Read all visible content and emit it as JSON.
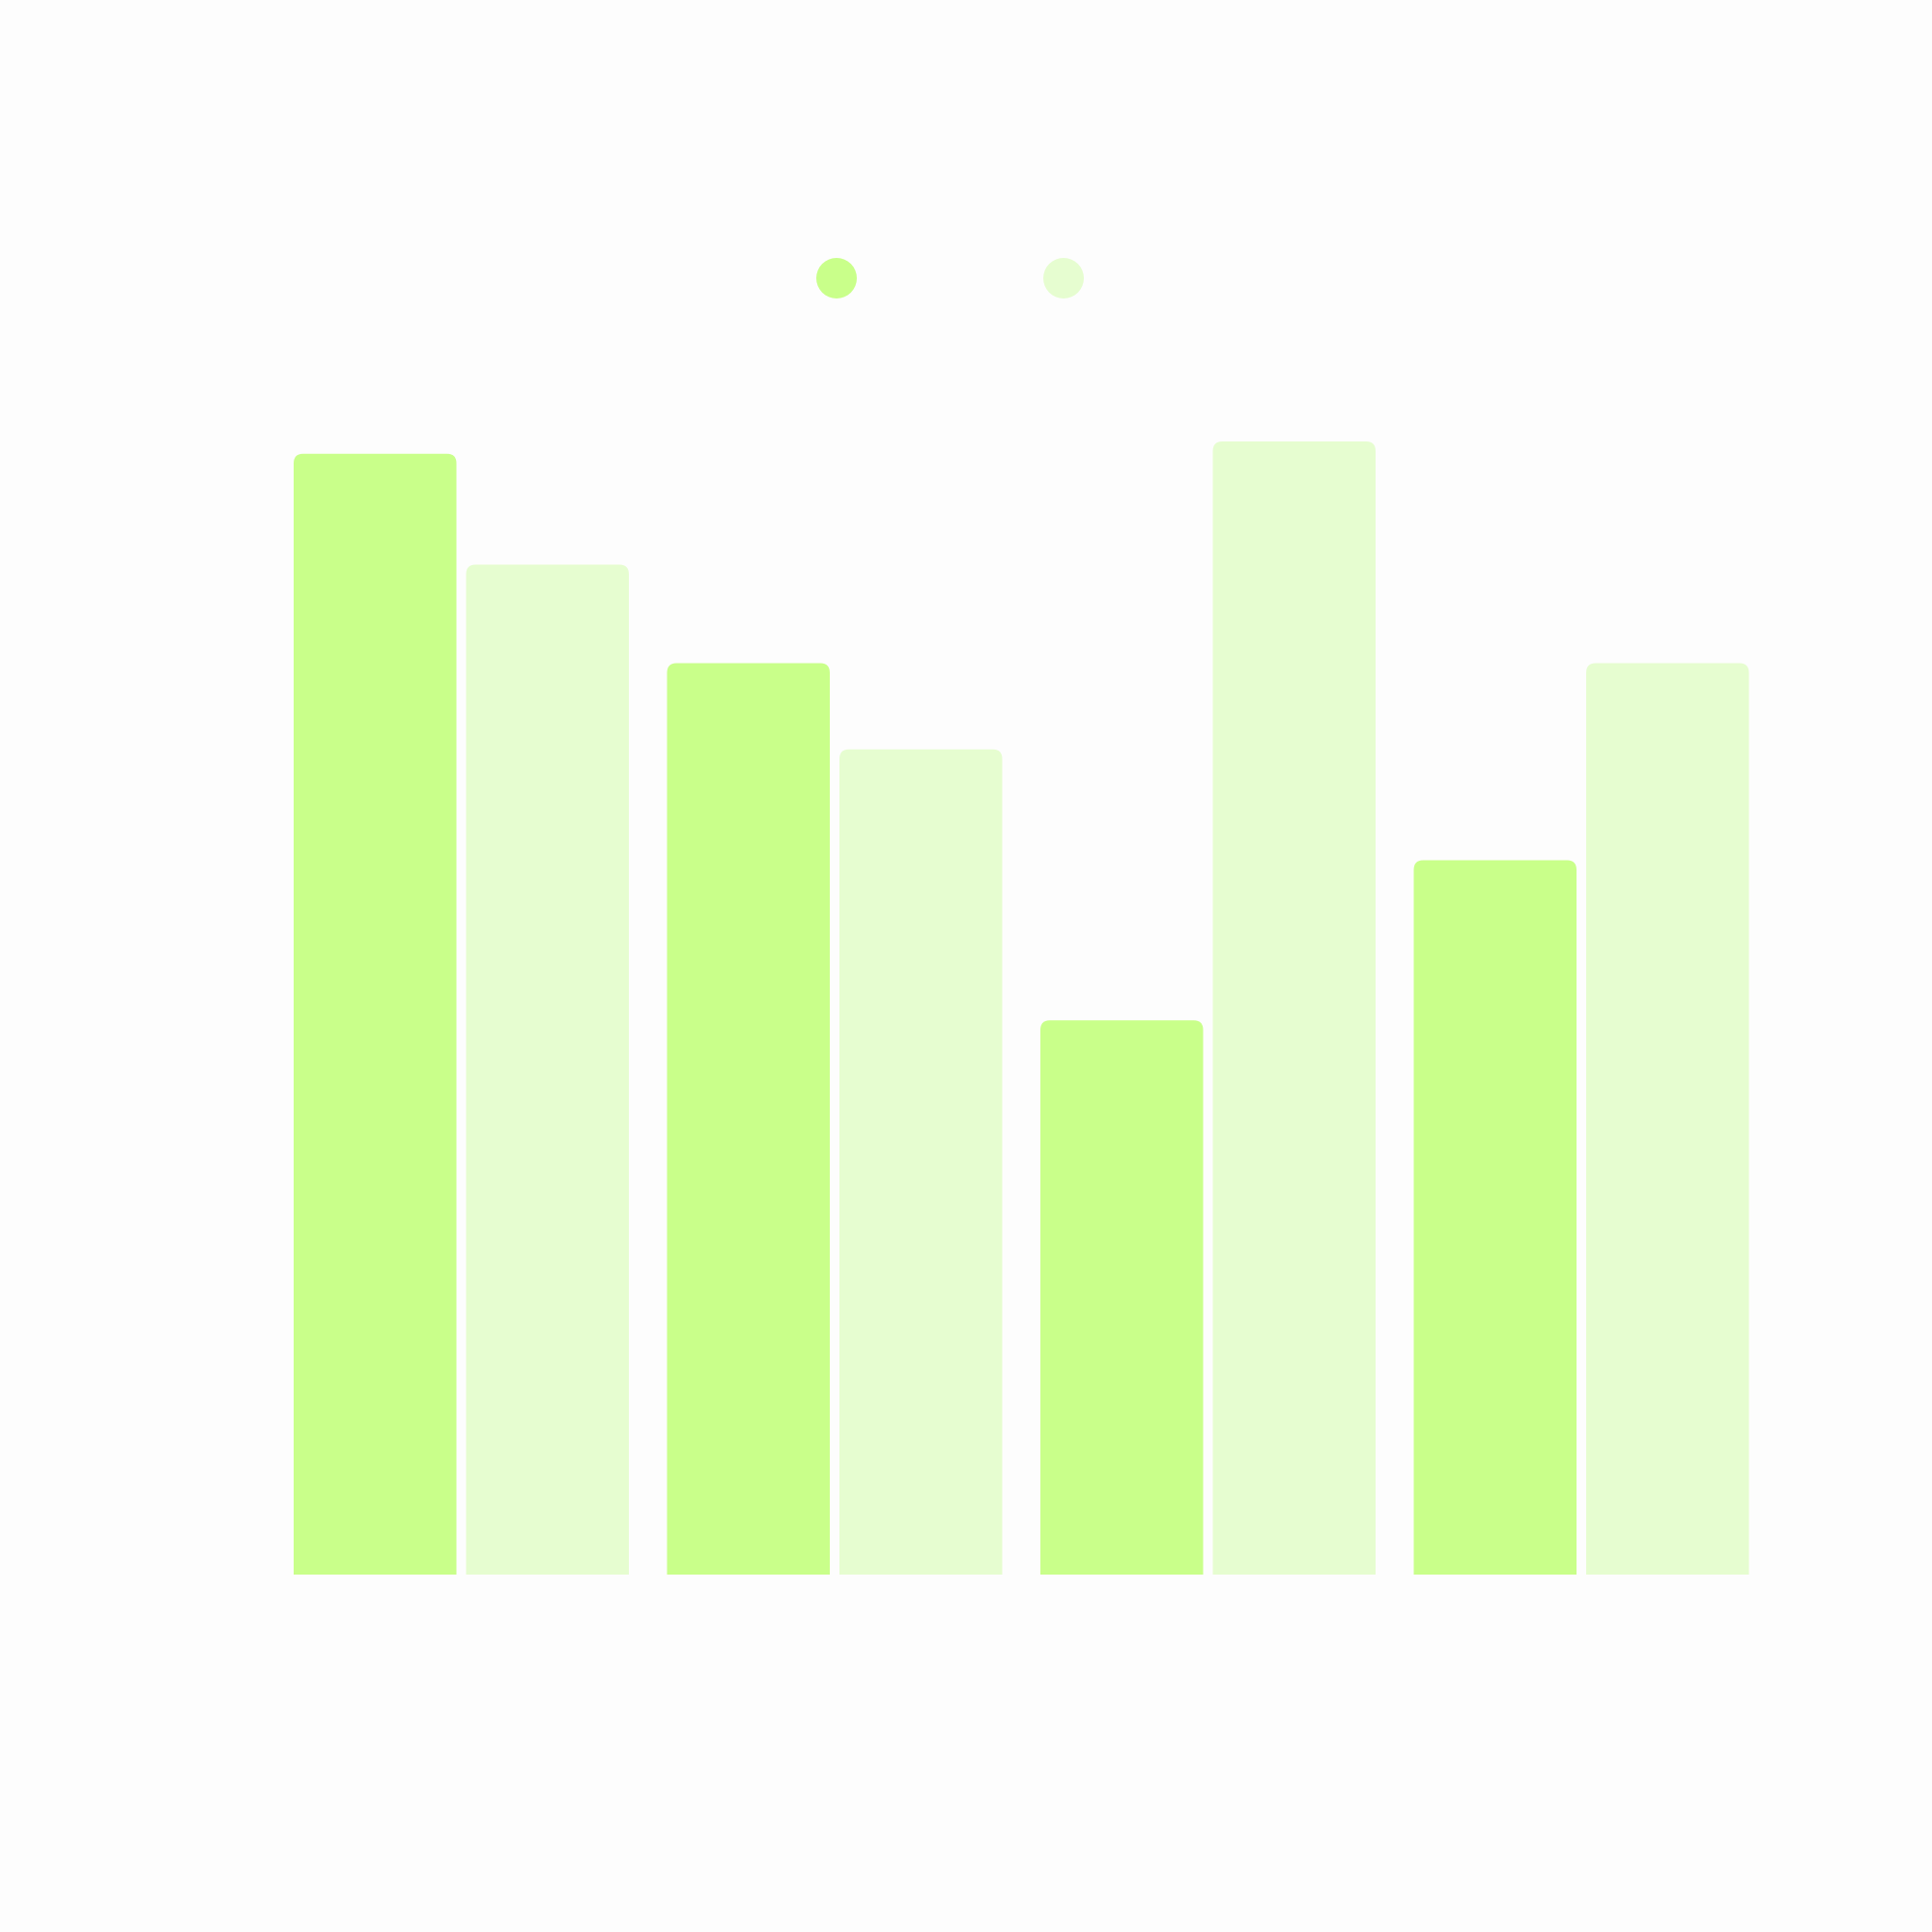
{
  "chart_data": {
    "type": "bar",
    "categories": [
      null,
      null,
      null,
      null
    ],
    "series": [
      {
        "color": "#c9ff8a",
        "values": [
          91,
          74,
          45,
          58
        ]
      },
      {
        "color": "#e6fdd0",
        "values": [
          82,
          67,
          92,
          74
        ]
      }
    ],
    "ylim": [
      0,
      100
    ]
  }
}
